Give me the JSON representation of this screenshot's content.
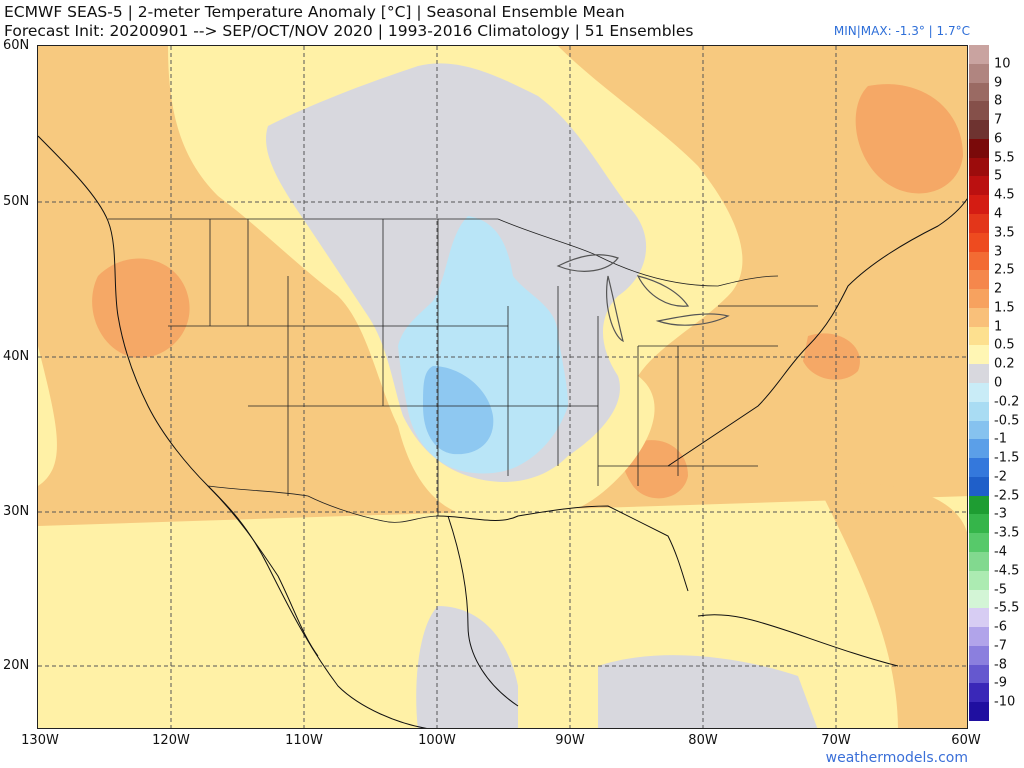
{
  "header": {
    "line1": "ECMWF SEAS-5 | 2-meter Temperature Anomaly [°C] | Seasonal Ensemble Mean",
    "line2": "Forecast Init: 20200901 --> SEP/OCT/NOV 2020  | 1993-2016 Climatology | 51 Ensembles",
    "minmax": "MIN|MAX: -1.3° | 1.7°C"
  },
  "axes": {
    "lat_labels": [
      "60N",
      "50N",
      "40N",
      "30N",
      "20N"
    ],
    "lon_labels": [
      "130W",
      "120W",
      "110W",
      "100W",
      "90W",
      "80W",
      "70W",
      "60W"
    ]
  },
  "colorbar": {
    "labels": [
      "10",
      "9",
      "8",
      "7",
      "6",
      "5.5",
      "5",
      "4.5",
      "4",
      "3.5",
      "3",
      "2.5",
      "2",
      "1.5",
      "1",
      "0.5",
      "0.2",
      "0",
      "-0.2",
      "-0.5",
      "-1",
      "-1.5",
      "-2",
      "-2.5",
      "-3",
      "-3.5",
      "-4",
      "-4.5",
      "-5",
      "-5.5",
      "-6",
      "-7",
      "-8",
      "-9",
      "-10"
    ],
    "colors": [
      "#c9a3a0",
      "#b08580",
      "#9a6a63",
      "#85504a",
      "#6e3330",
      "#7a0a0a",
      "#9c0c0c",
      "#bb1010",
      "#d41c13",
      "#e3361a",
      "#ee4b1f",
      "#f36b33",
      "#f5874c",
      "#f7a25f",
      "#f9c07a",
      "#fde08f",
      "#fff6b4",
      "#d8d8de",
      "#c9ecf7",
      "#a9dcf3",
      "#86c2ef",
      "#5b9fe8",
      "#3478dc",
      "#1f5fc9",
      "#1e9d32",
      "#35b54a",
      "#57c96a",
      "#82d98f",
      "#acebb2",
      "#d3f5d6",
      "#d7cdf3",
      "#b1a4ea",
      "#8b7fde",
      "#6558cf",
      "#3a28b8",
      "#1f0fa0"
    ]
  },
  "credit": "weathermodels.com"
}
